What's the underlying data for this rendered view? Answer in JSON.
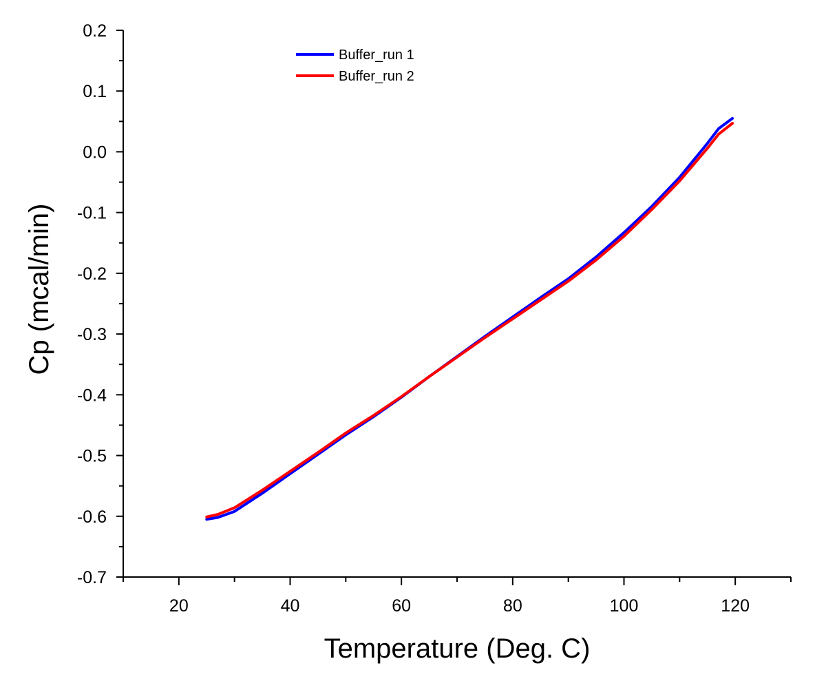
{
  "chart_data": {
    "type": "line",
    "title": "",
    "xlabel": "Temperature (Deg. C)",
    "ylabel": "Cp (mcal/min)",
    "xlim": [
      10,
      130
    ],
    "ylim": [
      -0.7,
      0.2
    ],
    "grid": false,
    "legend_position": "top-left",
    "x_ticks": [
      20,
      40,
      60,
      80,
      100,
      120
    ],
    "x_tick_labels": [
      "20",
      "40",
      "60",
      "80",
      "100",
      "120"
    ],
    "y_ticks": [
      -0.7,
      -0.6,
      -0.5,
      -0.4,
      -0.3,
      -0.2,
      -0.1,
      0.0,
      0.1,
      0.2
    ],
    "y_tick_labels": [
      "-0.7",
      "-0.6",
      "-0.5",
      "-0.4",
      "-0.3",
      "-0.2",
      "-0.1",
      "0.0",
      "0.1",
      "0.2"
    ],
    "series": [
      {
        "name": "Buffer_run 1",
        "color": "#0000ff",
        "x": [
          25,
          27,
          30,
          35,
          40,
          45,
          50,
          55,
          60,
          65,
          70,
          75,
          80,
          85,
          90,
          95,
          100,
          105,
          110,
          115,
          117,
          119.5
        ],
        "y": [
          -0.605,
          -0.602,
          -0.592,
          -0.562,
          -0.53,
          -0.498,
          -0.466,
          -0.436,
          -0.404,
          -0.37,
          -0.337,
          -0.304,
          -0.272,
          -0.24,
          -0.209,
          -0.173,
          -0.133,
          -0.09,
          -0.042,
          0.014,
          0.038,
          0.055
        ]
      },
      {
        "name": "Buffer_run 2",
        "color": "#ff0000",
        "x": [
          25,
          27,
          30,
          35,
          40,
          45,
          50,
          55,
          60,
          65,
          70,
          75,
          80,
          85,
          90,
          95,
          100,
          105,
          110,
          115,
          117,
          119.5
        ],
        "y": [
          -0.601,
          -0.597,
          -0.586,
          -0.557,
          -0.526,
          -0.495,
          -0.463,
          -0.434,
          -0.403,
          -0.37,
          -0.338,
          -0.306,
          -0.275,
          -0.244,
          -0.213,
          -0.178,
          -0.139,
          -0.095,
          -0.048,
          0.006,
          0.029,
          0.047
        ]
      }
    ]
  }
}
